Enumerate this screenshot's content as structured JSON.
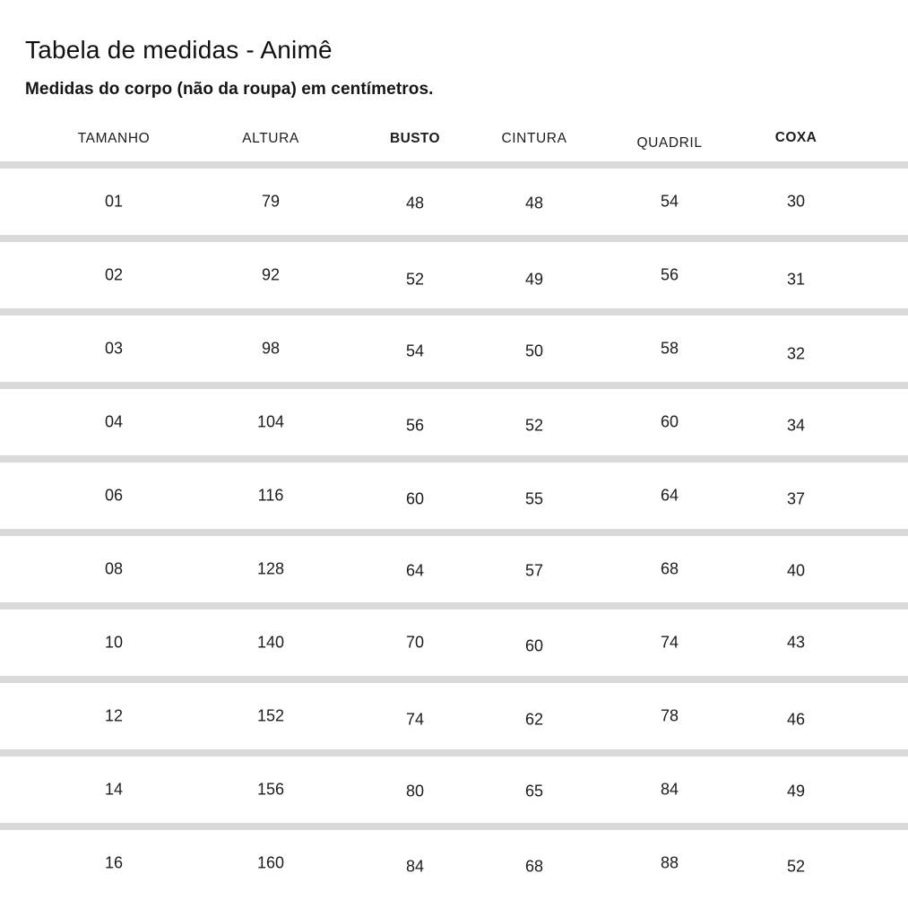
{
  "page": {
    "title": "Tabela de medidas - Animê",
    "subtitle": "Medidas do corpo (não da roupa) em centímetros."
  },
  "table": {
    "columns": [
      "TAMANHO",
      "ALTURA",
      "BUSTO",
      "CINTURA",
      "QUADRIL",
      "COXA"
    ],
    "rows": [
      [
        "01",
        "79",
        "48",
        "48",
        "54",
        "30"
      ],
      [
        "02",
        "92",
        "52",
        "49",
        "56",
        "31"
      ],
      [
        "03",
        "98",
        "54",
        "50",
        "58",
        "32"
      ],
      [
        "04",
        "104",
        "56",
        "52",
        "60",
        "34"
      ],
      [
        "06",
        "116",
        "60",
        "55",
        "64",
        "37"
      ],
      [
        "08",
        "128",
        "64",
        "57",
        "68",
        "40"
      ],
      [
        "10",
        "140",
        "70",
        "60",
        "74",
        "43"
      ],
      [
        "12",
        "152",
        "74",
        "62",
        "78",
        "46"
      ],
      [
        "14",
        "156",
        "80",
        "65",
        "84",
        "49"
      ],
      [
        "16",
        "160",
        "84",
        "68",
        "88",
        "52"
      ]
    ]
  },
  "colors": {
    "background": "#ffffff",
    "divider": "#dadada",
    "text": "#1c1c1c"
  }
}
